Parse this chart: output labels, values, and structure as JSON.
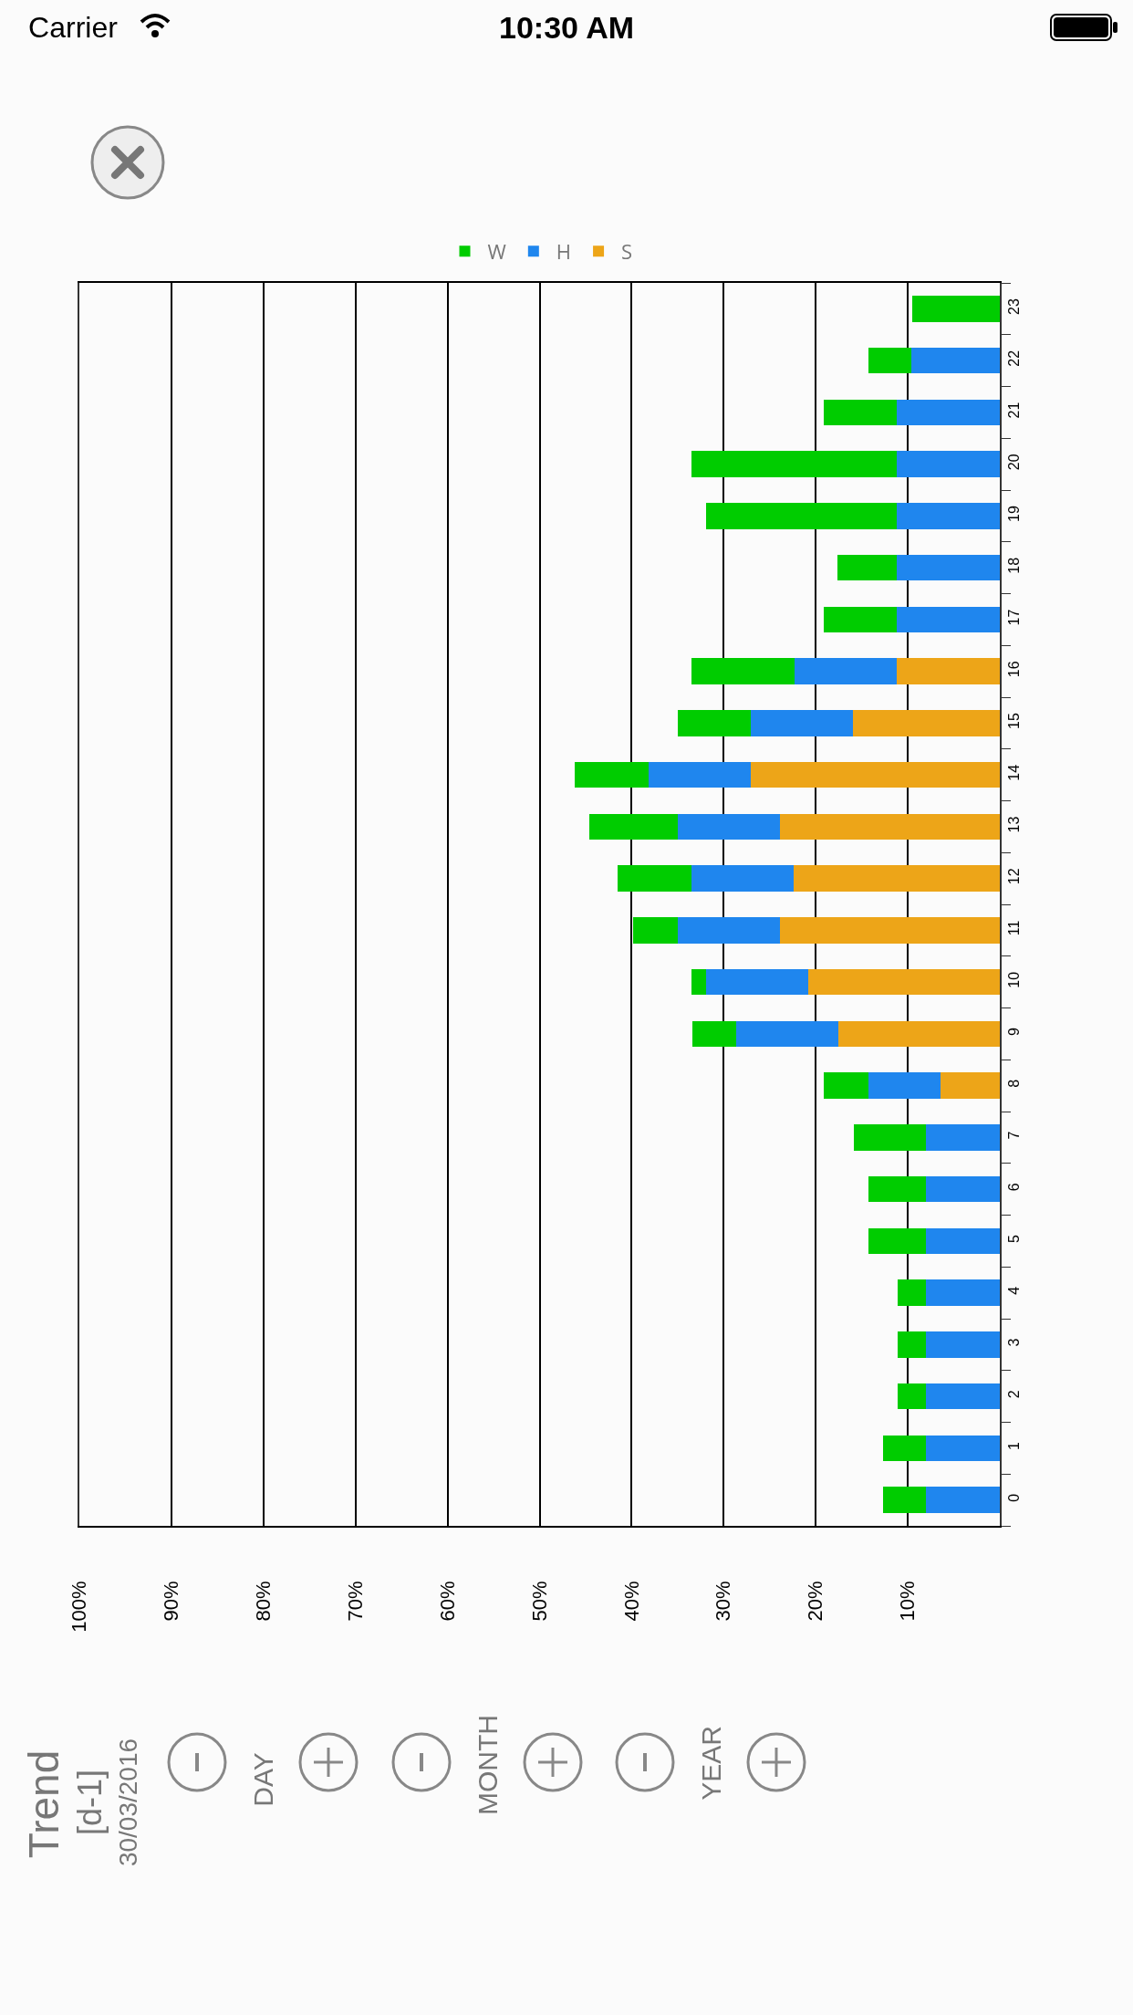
{
  "chart_data": {
    "type": "bar",
    "title": "Trend",
    "subtitle": "[d-1]",
    "annotations": [
      "30/03/2016",
      "DAY",
      "MONTH",
      "YEAR",
      "Carrier",
      "10:30 AM"
    ],
    "orientation": "horizontal",
    "stacked": true,
    "categories": [
      "23",
      "22",
      "21",
      "20",
      "19",
      "18",
      "17",
      "16",
      "15",
      "14",
      "13",
      "12",
      "11",
      "10",
      "9",
      "8",
      "7",
      "6",
      "5",
      "4",
      "3",
      "2",
      "1",
      "0"
    ],
    "series": [
      {
        "name": "S",
        "color": "#eda518",
        "values": [
          null,
          null,
          null,
          null,
          null,
          null,
          null,
          11.2,
          16.0,
          27.1,
          23.9,
          22.4,
          23.9,
          20.8,
          17.5,
          6.4,
          null,
          null,
          null,
          null,
          null,
          null,
          null,
          null
        ]
      },
      {
        "name": "H",
        "color": "#1f86ee",
        "values": [
          null,
          9.6,
          11.2,
          11.2,
          11.2,
          11.2,
          11.2,
          11.1,
          11.1,
          11.1,
          11.1,
          11.1,
          11.1,
          11.1,
          11.1,
          7.9,
          8.0,
          8.0,
          8.0,
          8.0,
          8.0,
          8.0,
          8.0,
          8.0
        ]
      },
      {
        "name": "W",
        "color": "#00cc00",
        "values": [
          9.5,
          4.7,
          7.9,
          22.3,
          20.7,
          6.4,
          7.9,
          11.2,
          7.9,
          8.0,
          9.6,
          8.0,
          4.8,
          1.6,
          4.8,
          4.8,
          7.9,
          6.3,
          6.3,
          3.1,
          3.1,
          3.1,
          4.7,
          4.7
        ]
      }
    ],
    "xlim": [
      100,
      0
    ],
    "xticks": [
      {
        "value": 10,
        "label": "10%"
      },
      {
        "value": 20,
        "label": "20%"
      },
      {
        "value": 30,
        "label": "30%"
      },
      {
        "value": 40,
        "label": "40%"
      },
      {
        "value": 50,
        "label": "50%"
      },
      {
        "value": 60,
        "label": "60%"
      },
      {
        "value": 70,
        "label": "70%"
      },
      {
        "value": 80,
        "label": "80%"
      },
      {
        "value": 90,
        "label": "90%"
      },
      {
        "value": 100,
        "label": "100%"
      }
    ],
    "grid": "x",
    "legend": "top"
  }
}
